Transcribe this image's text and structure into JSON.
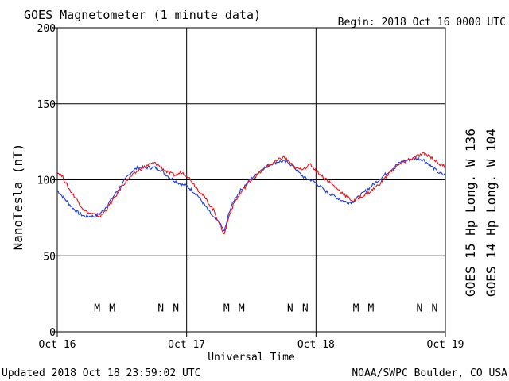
{
  "title": "GOES Magnetometer (1 minute data)",
  "begin_label": "Begin:  2018 Oct 16 0000 UTC",
  "updated_label": "Updated 2018 Oct 18 23:59:02 UTC",
  "credit_label": "NOAA/SWPC Boulder, CO USA",
  "chart_data": {
    "type": "line",
    "xlabel": "Universal Time",
    "ylabel": "NanoTesla (nT)",
    "xlim": [
      0,
      72
    ],
    "ylim": [
      0,
      200
    ],
    "grid": true,
    "x_ticks": [
      {
        "x": 0,
        "label": "Oct 16"
      },
      {
        "x": 24,
        "label": "Oct 17"
      },
      {
        "x": 48,
        "label": "Oct 18"
      },
      {
        "x": 72,
        "label": "Oct 19"
      }
    ],
    "y_ticks": [
      0,
      50,
      100,
      150,
      200
    ],
    "legend": [
      {
        "text": "GOES 15 Hp  Long. W 136",
        "color": "#e8141b"
      },
      {
        "text": "GOES 14 Hp  Long. W 104",
        "color": "#1f3fd6"
      }
    ],
    "series": [
      {
        "name": "GOES 15 Hp  Long. W 136",
        "color": "#e8141b",
        "points": [
          [
            0,
            105
          ],
          [
            1,
            102
          ],
          [
            2,
            95
          ],
          [
            3,
            90
          ],
          [
            4,
            85
          ],
          [
            5,
            80
          ],
          [
            6,
            78
          ],
          [
            7,
            77
          ],
          [
            8,
            76
          ],
          [
            9,
            80
          ],
          [
            10,
            85
          ],
          [
            11,
            90
          ],
          [
            12,
            96
          ],
          [
            13,
            100
          ],
          [
            14,
            103
          ],
          [
            15,
            106
          ],
          [
            16,
            108
          ],
          [
            17,
            110
          ],
          [
            18,
            111
          ],
          [
            19,
            109
          ],
          [
            20,
            106
          ],
          [
            21,
            104
          ],
          [
            22,
            103
          ],
          [
            23,
            105
          ],
          [
            24,
            103
          ],
          [
            25,
            99
          ],
          [
            26,
            94
          ],
          [
            27,
            90
          ],
          [
            28,
            85
          ],
          [
            29,
            80
          ],
          [
            30,
            72
          ],
          [
            31,
            64
          ],
          [
            32,
            78
          ],
          [
            33,
            86
          ],
          [
            34,
            91
          ],
          [
            35,
            96
          ],
          [
            36,
            100
          ],
          [
            37,
            103
          ],
          [
            38,
            106
          ],
          [
            39,
            109
          ],
          [
            40,
            111
          ],
          [
            41,
            113
          ],
          [
            42,
            115
          ],
          [
            43,
            112
          ],
          [
            44,
            108
          ],
          [
            45,
            107
          ],
          [
            46,
            108
          ],
          [
            47,
            110
          ],
          [
            48,
            106
          ],
          [
            49,
            103
          ],
          [
            50,
            100
          ],
          [
            51,
            97
          ],
          [
            52,
            94
          ],
          [
            53,
            91
          ],
          [
            54,
            88
          ],
          [
            55,
            86
          ],
          [
            56,
            88
          ],
          [
            57,
            90
          ],
          [
            58,
            92
          ],
          [
            59,
            95
          ],
          [
            60,
            98
          ],
          [
            61,
            102
          ],
          [
            62,
            106
          ],
          [
            63,
            109
          ],
          [
            64,
            111
          ],
          [
            65,
            113
          ],
          [
            66,
            114
          ],
          [
            67,
            116
          ],
          [
            68,
            117
          ],
          [
            69,
            116
          ],
          [
            70,
            113
          ],
          [
            71,
            110
          ],
          [
            72,
            109
          ]
        ]
      },
      {
        "name": "GOES 14 Hp  Long. W 104",
        "color": "#1f3fd6",
        "points": [
          [
            0,
            93
          ],
          [
            1,
            89
          ],
          [
            2,
            85
          ],
          [
            3,
            81
          ],
          [
            4,
            78
          ],
          [
            5,
            76
          ],
          [
            6,
            76
          ],
          [
            7,
            76
          ],
          [
            8,
            78
          ],
          [
            9,
            82
          ],
          [
            10,
            87
          ],
          [
            11,
            92
          ],
          [
            12,
            97
          ],
          [
            13,
            102
          ],
          [
            14,
            106
          ],
          [
            15,
            108
          ],
          [
            16,
            108
          ],
          [
            17,
            108
          ],
          [
            18,
            108
          ],
          [
            19,
            107
          ],
          [
            20,
            104
          ],
          [
            21,
            101
          ],
          [
            22,
            99
          ],
          [
            23,
            97
          ],
          [
            24,
            96
          ],
          [
            25,
            93
          ],
          [
            26,
            90
          ],
          [
            27,
            85
          ],
          [
            28,
            80
          ],
          [
            29,
            75
          ],
          [
            30,
            72
          ],
          [
            31,
            66
          ],
          [
            32,
            80
          ],
          [
            33,
            88
          ],
          [
            34,
            93
          ],
          [
            35,
            97
          ],
          [
            36,
            101
          ],
          [
            37,
            104
          ],
          [
            38,
            107
          ],
          [
            39,
            109
          ],
          [
            40,
            111
          ],
          [
            41,
            112
          ],
          [
            42,
            112
          ],
          [
            43,
            111
          ],
          [
            44,
            108
          ],
          [
            45,
            104
          ],
          [
            46,
            101
          ],
          [
            47,
            100
          ],
          [
            48,
            98
          ],
          [
            49,
            95
          ],
          [
            50,
            92
          ],
          [
            51,
            90
          ],
          [
            52,
            88
          ],
          [
            53,
            86
          ],
          [
            54,
            85
          ],
          [
            55,
            86
          ],
          [
            56,
            89
          ],
          [
            57,
            92
          ],
          [
            58,
            95
          ],
          [
            59,
            98
          ],
          [
            60,
            101
          ],
          [
            61,
            104
          ],
          [
            62,
            107
          ],
          [
            63,
            110
          ],
          [
            64,
            112
          ],
          [
            65,
            113
          ],
          [
            66,
            114
          ],
          [
            67,
            114
          ],
          [
            68,
            113
          ],
          [
            69,
            110
          ],
          [
            70,
            107
          ],
          [
            71,
            104
          ],
          [
            72,
            103
          ]
        ]
      }
    ],
    "markers": [
      {
        "x": 7.4,
        "label": "M",
        "color": "#1f3fd6"
      },
      {
        "x": 10.2,
        "label": "M",
        "color": "#e8141b"
      },
      {
        "x": 19.2,
        "label": "N",
        "color": "#1f3fd6"
      },
      {
        "x": 22.0,
        "label": "N",
        "color": "#e8141b"
      },
      {
        "x": 31.4,
        "label": "M",
        "color": "#1f3fd6"
      },
      {
        "x": 34.2,
        "label": "M",
        "color": "#e8141b"
      },
      {
        "x": 43.2,
        "label": "N",
        "color": "#1f3fd6"
      },
      {
        "x": 46.0,
        "label": "N",
        "color": "#e8141b"
      },
      {
        "x": 55.4,
        "label": "M",
        "color": "#1f3fd6"
      },
      {
        "x": 58.2,
        "label": "M",
        "color": "#e8141b"
      },
      {
        "x": 67.2,
        "label": "N",
        "color": "#1f3fd6"
      },
      {
        "x": 70.0,
        "label": "N",
        "color": "#e8141b"
      }
    ],
    "marker_level": 16
  }
}
